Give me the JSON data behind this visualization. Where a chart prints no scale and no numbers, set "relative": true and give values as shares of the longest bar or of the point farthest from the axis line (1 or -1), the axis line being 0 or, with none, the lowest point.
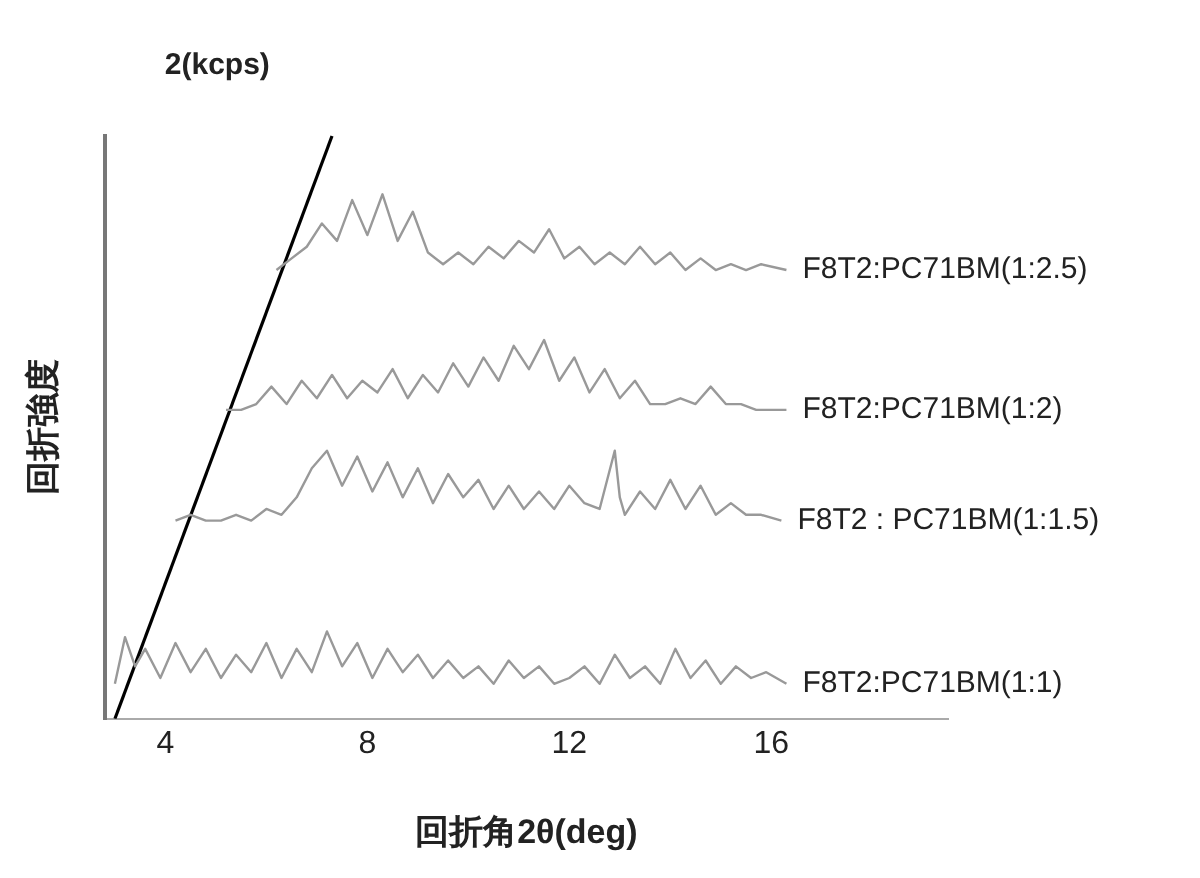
{
  "chart_data": {
    "type": "line",
    "relative": true,
    "xlabel": "回折角2θ(deg)",
    "ylabel": "回折強度",
    "annotations": [
      "2(kcps)"
    ],
    "xlim": [
      2.8,
      19.5
    ],
    "xticks": [
      4,
      8,
      12,
      16
    ],
    "grid": false,
    "legend": false,
    "marker": "none",
    "line_style": "solid",
    "series": [
      {
        "name": "F8T2:PC71BM(1:1)",
        "color": "#999999",
        "x": [
          3.0,
          3.2,
          3.4,
          3.6,
          3.9,
          4.2,
          4.5,
          4.8,
          5.1,
          5.4,
          5.7,
          6.0,
          6.3,
          6.6,
          6.9,
          7.2,
          7.5,
          7.8,
          8.1,
          8.4,
          8.7,
          9.0,
          9.3,
          9.6,
          9.9,
          10.2,
          10.5,
          10.8,
          11.1,
          11.4,
          11.7,
          12.0,
          12.3,
          12.6,
          12.9,
          13.2,
          13.5,
          13.8,
          14.1,
          14.4,
          14.7,
          15.0,
          15.3,
          15.6,
          15.9,
          16.3
        ],
        "values": [
          0.06,
          0.14,
          0.09,
          0.12,
          0.07,
          0.13,
          0.08,
          0.12,
          0.07,
          0.11,
          0.08,
          0.13,
          0.07,
          0.12,
          0.08,
          0.15,
          0.09,
          0.13,
          0.07,
          0.12,
          0.08,
          0.11,
          0.07,
          0.1,
          0.07,
          0.09,
          0.06,
          0.1,
          0.07,
          0.09,
          0.06,
          0.07,
          0.09,
          0.06,
          0.11,
          0.07,
          0.09,
          0.06,
          0.12,
          0.07,
          0.1,
          0.06,
          0.09,
          0.07,
          0.08,
          0.06
        ]
      },
      {
        "name": "F8T2 : PC71BM(1:1.5)",
        "color": "#999999",
        "x": [
          4.2,
          4.5,
          4.8,
          5.1,
          5.4,
          5.7,
          6.0,
          6.3,
          6.6,
          6.9,
          7.2,
          7.5,
          7.8,
          8.1,
          8.4,
          8.7,
          9.0,
          9.3,
          9.6,
          9.9,
          10.2,
          10.5,
          10.8,
          11.1,
          11.4,
          11.7,
          12.0,
          12.3,
          12.6,
          12.9,
          13.0,
          13.1,
          13.4,
          13.7,
          14.0,
          14.3,
          14.6,
          14.9,
          15.2,
          15.5,
          15.8,
          16.2
        ],
        "values": [
          0.34,
          0.35,
          0.34,
          0.34,
          0.35,
          0.34,
          0.36,
          0.35,
          0.38,
          0.43,
          0.46,
          0.4,
          0.45,
          0.39,
          0.44,
          0.38,
          0.43,
          0.37,
          0.42,
          0.38,
          0.41,
          0.36,
          0.4,
          0.36,
          0.39,
          0.36,
          0.4,
          0.37,
          0.36,
          0.46,
          0.38,
          0.35,
          0.39,
          0.36,
          0.41,
          0.36,
          0.4,
          0.35,
          0.37,
          0.35,
          0.35,
          0.34
        ]
      },
      {
        "name": "F8T2:PC71BM(1:2)",
        "color": "#999999",
        "x": [
          5.2,
          5.5,
          5.8,
          6.1,
          6.4,
          6.7,
          7.0,
          7.3,
          7.6,
          7.9,
          8.2,
          8.5,
          8.8,
          9.1,
          9.4,
          9.7,
          10.0,
          10.3,
          10.6,
          10.9,
          11.2,
          11.5,
          11.8,
          12.1,
          12.4,
          12.7,
          13.0,
          13.3,
          13.6,
          13.9,
          14.2,
          14.5,
          14.8,
          15.1,
          15.4,
          15.7,
          16.0,
          16.3
        ],
        "values": [
          0.53,
          0.53,
          0.54,
          0.57,
          0.54,
          0.58,
          0.55,
          0.59,
          0.55,
          0.58,
          0.56,
          0.6,
          0.55,
          0.59,
          0.56,
          0.61,
          0.57,
          0.62,
          0.58,
          0.64,
          0.6,
          0.65,
          0.58,
          0.62,
          0.56,
          0.6,
          0.55,
          0.58,
          0.54,
          0.54,
          0.55,
          0.54,
          0.57,
          0.54,
          0.54,
          0.53,
          0.53,
          0.53
        ]
      },
      {
        "name": "F8T2:PC71BM(1:2.5)",
        "color": "#999999",
        "x": [
          6.2,
          6.5,
          6.8,
          7.1,
          7.4,
          7.7,
          8.0,
          8.3,
          8.6,
          8.9,
          9.2,
          9.5,
          9.8,
          10.1,
          10.4,
          10.7,
          11.0,
          11.3,
          11.6,
          11.9,
          12.2,
          12.5,
          12.8,
          13.1,
          13.4,
          13.7,
          14.0,
          14.3,
          14.6,
          14.9,
          15.2,
          15.5,
          15.8,
          16.3
        ],
        "values": [
          0.77,
          0.79,
          0.81,
          0.85,
          0.82,
          0.89,
          0.83,
          0.9,
          0.82,
          0.87,
          0.8,
          0.78,
          0.8,
          0.78,
          0.81,
          0.79,
          0.82,
          0.8,
          0.84,
          0.79,
          0.81,
          0.78,
          0.8,
          0.78,
          0.81,
          0.78,
          0.8,
          0.77,
          0.79,
          0.77,
          0.78,
          0.77,
          0.78,
          0.77
        ]
      },
      {
        "color": "#000000",
        "x": [
          3.0,
          7.3
        ],
        "values": [
          0,
          1
        ]
      }
    ]
  }
}
